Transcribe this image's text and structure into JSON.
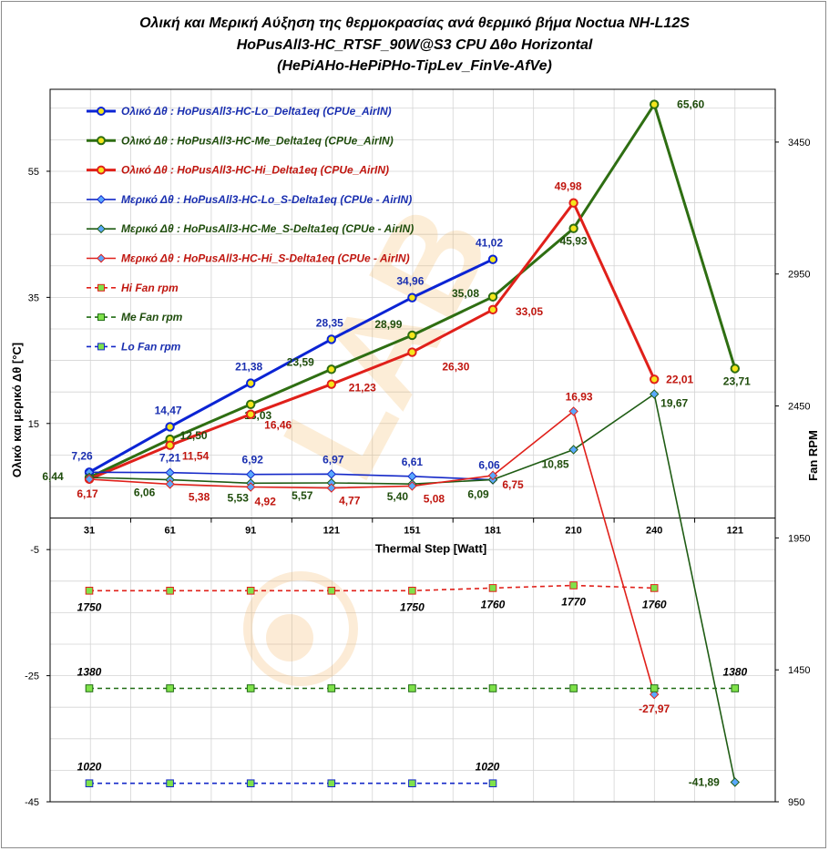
{
  "chart_data": {
    "type": "line",
    "title_lines": [
      "Ολική και Μερική Αύξηση της θερμοκρασίας ανά θερμικό βήμα   Noctua NH-L12S",
      "HoPusAll3-HC_RTSF_90W@S3   CPU  Δθο Horizontal",
      "(HePiAHo-HePiPHo-TipLev_FinVe-AfVe)"
    ],
    "xlabel": "Thermal Step [Watt]",
    "ylabel": "Ολικό και μερικό  Δθ  [°C]",
    "y2label": "Fan RPM",
    "categories": [
      "31",
      "61",
      "91",
      "121",
      "151",
      "181",
      "210",
      "240",
      "121"
    ],
    "y_ticks": [
      "55",
      "35",
      "15",
      "-5",
      "-25",
      "-45"
    ],
    "y_tick_values": [
      55,
      35,
      15,
      -5,
      -25,
      -45
    ],
    "ylim": [
      -45,
      68
    ],
    "y2_ticks": [
      "3450",
      "2950",
      "2450",
      "1950",
      "1450",
      "950"
    ],
    "y2_tick_values": [
      3450,
      2950,
      2450,
      1950,
      1450,
      950
    ],
    "y2lim": [
      950,
      3650
    ],
    "grid": true,
    "legend_position": "top-left",
    "watermark_text": "LAB",
    "series": [
      {
        "name": "Ολικό Δθ : HoPusAll3-HC-Lo_Delta1eq (CPUe_AirIN)",
        "axis": "left",
        "color": "#0b24d4",
        "marker": "circle",
        "width": 3,
        "dash": false,
        "values": [
          7.26,
          14.47,
          21.38,
          28.35,
          34.96,
          41.02,
          null,
          null,
          null
        ],
        "labels": [
          "7,26",
          "14,47",
          "21,38",
          "28,35",
          "34,96",
          "41,02",
          "",
          "",
          ""
        ],
        "label_color": "#1a2fb0"
      },
      {
        "name": "Ολικό Δθ : HoPusAll3-HC-Me_Delta1eq (CPUe_AirIN)",
        "axis": "left",
        "color": "#2e6e12",
        "marker": "circle",
        "width": 3,
        "dash": false,
        "values": [
          6.44,
          12.5,
          18.03,
          23.59,
          28.99,
          35.08,
          45.93,
          65.6,
          23.71
        ],
        "labels": [
          "6,44",
          "12,50",
          "18,03",
          "23,59",
          "28,99",
          "35,08",
          "45,93",
          "65,60",
          "23,71"
        ],
        "label_color": "#1f4d0c"
      },
      {
        "name": "Ολικό Δθ : HoPusAll3-HC-Hi_Delta1eq (CPUe_AirIN)",
        "axis": "left",
        "color": "#e0201a",
        "marker": "circle",
        "width": 3,
        "dash": false,
        "values": [
          6.17,
          11.54,
          16.46,
          21.23,
          26.3,
          33.05,
          49.98,
          22.01,
          null
        ],
        "labels": [
          "6,17",
          "11,54",
          "16,46",
          "21,23",
          "26,30",
          "33,05",
          "49,98",
          "22,01",
          ""
        ],
        "label_color": "#c0160f"
      },
      {
        "name": "Μερικό Δθ : HoPusAll3-HC-Lo_S-Delta1eq (CPUe - AirIN)",
        "axis": "left",
        "color": "#1428c8",
        "marker": "diamond",
        "width": 1.6,
        "dash": false,
        "values": [
          7.26,
          7.21,
          6.92,
          6.97,
          6.61,
          6.06,
          null,
          null,
          null
        ],
        "labels": [
          "",
          "7,21",
          "6,92",
          "6,97",
          "6,61",
          "6,06",
          "",
          "",
          ""
        ],
        "label_color": "#1a2fb0"
      },
      {
        "name": "Μερικό Δθ : HoPusAll3-HC-Me_S-Delta1eq (CPUe - AirIN)",
        "axis": "left",
        "color": "#1f5c14",
        "marker": "diamond",
        "width": 1.6,
        "dash": false,
        "values": [
          6.44,
          6.06,
          5.53,
          5.57,
          5.4,
          6.09,
          10.85,
          19.67,
          -41.89
        ],
        "labels": [
          "",
          "6,06",
          "5,53",
          "5,57",
          "5,40",
          "6,09",
          "10,85",
          "19,67",
          "-41,89"
        ],
        "label_color": "#1f4d0c"
      },
      {
        "name": "Μερικό Δθ : HoPusAll3-HC-Hi_S-Delta1eq (CPUe - AirIN)",
        "axis": "left",
        "color": "#e0201a",
        "marker": "diamond",
        "width": 1.6,
        "dash": false,
        "values": [
          6.17,
          5.38,
          4.92,
          4.77,
          5.08,
          6.75,
          16.93,
          -27.97,
          null
        ],
        "labels": [
          "",
          "5,38",
          "4,92",
          "4,77",
          "5,08",
          "6,75",
          "16,93",
          "-27,97",
          ""
        ],
        "label_color": "#c0160f"
      },
      {
        "name": "Hi Fan rpm",
        "axis": "right",
        "color": "#e0201a",
        "marker": "square",
        "width": 1.6,
        "dash": true,
        "values": [
          1750,
          1750,
          1750,
          1750,
          1750,
          1760,
          1770,
          1760,
          null
        ],
        "labels": [
          "1750",
          "",
          "",
          "",
          "1750",
          "1760",
          "1770",
          "1760",
          ""
        ],
        "label_color": "#000000"
      },
      {
        "name": "Me Fan rpm",
        "axis": "right",
        "color": "#1f6b12",
        "marker": "square",
        "width": 1.6,
        "dash": true,
        "values": [
          1380,
          1380,
          1380,
          1380,
          1380,
          1380,
          1380,
          1380,
          1380
        ],
        "labels": [
          "1380",
          "",
          "",
          "",
          "",
          "",
          "",
          "",
          "1380"
        ],
        "label_color": "#000000"
      },
      {
        "name": "Lo Fan rpm",
        "axis": "right",
        "color": "#1428c8",
        "marker": "square",
        "width": 1.6,
        "dash": true,
        "values": [
          1020,
          1020,
          1020,
          1020,
          1020,
          1020,
          null,
          null,
          null
        ],
        "labels": [
          "1020",
          "",
          "",
          "",
          "",
          "1020",
          "",
          "",
          ""
        ],
        "label_color": "#000000"
      }
    ]
  }
}
